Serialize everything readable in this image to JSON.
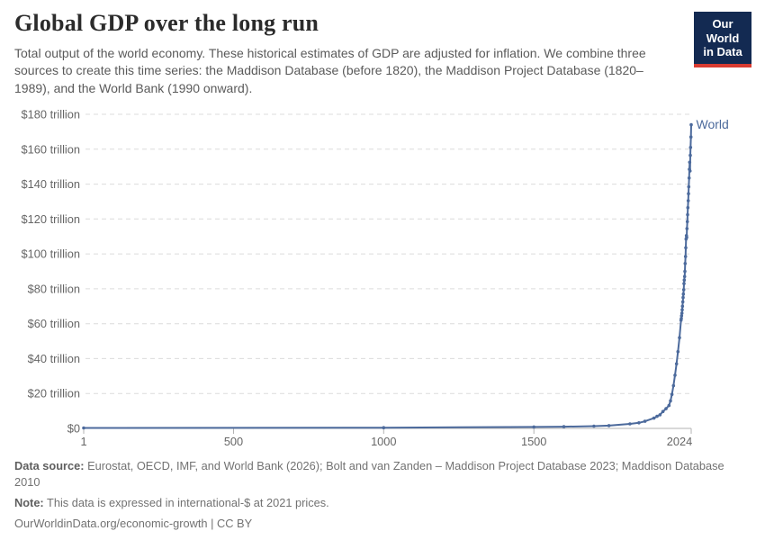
{
  "header": {
    "title": "Global GDP over the long run",
    "subtitle": "Total output of the world economy. These historical estimates of GDP are adjusted for inflation. We combine three sources to create this time series: the Maddison Database (before 1820), the Maddison Project Database (1820–1989), and the World Bank (1990 onward)."
  },
  "logo": {
    "line1": "Our World",
    "line2": "in Data",
    "bg_color": "#132A52",
    "accent_color": "#D93B31"
  },
  "footer": {
    "data_source_label": "Data source:",
    "data_source_text": " Eurostat, OECD, IMF, and World Bank (2026); Bolt and van Zanden – Maddison Project Database 2023; Maddison Database 2010",
    "note_label": "Note:",
    "note_text": " This data is expressed in international-$ at 2021 prices.",
    "citation": "OurWorldinData.org/economic-growth | CC BY"
  },
  "chart_data": {
    "type": "line",
    "title": "Global GDP over the long run",
    "xlabel": "",
    "ylabel": "",
    "unit": "trillion international-$ at 2021 prices",
    "xlim": [
      1,
      2024
    ],
    "ylim": [
      0,
      180
    ],
    "grid": "horizontal-dashed",
    "legend": "label-at-line-end",
    "x_ticks": [
      {
        "v": 1,
        "label": "1"
      },
      {
        "v": 500,
        "label": "500"
      },
      {
        "v": 1000,
        "label": "1000"
      },
      {
        "v": 1500,
        "label": "1500"
      },
      {
        "v": 2024,
        "label": "2024"
      }
    ],
    "y_ticks": [
      {
        "v": 0,
        "label": "$0"
      },
      {
        "v": 20,
        "label": "$20 trillion"
      },
      {
        "v": 40,
        "label": "$40 trillion"
      },
      {
        "v": 60,
        "label": "$60 trillion"
      },
      {
        "v": 80,
        "label": "$80 trillion"
      },
      {
        "v": 100,
        "label": "$100 trillion"
      },
      {
        "v": 120,
        "label": "$120 trillion"
      },
      {
        "v": 140,
        "label": "$140 trillion"
      },
      {
        "v": 160,
        "label": "$160 trillion"
      },
      {
        "v": 180,
        "label": "$180 trillion"
      }
    ],
    "series": [
      {
        "name": "World",
        "color": "#4C6A9C",
        "points": [
          [
            1,
            0.24
          ],
          [
            1000,
            0.41
          ],
          [
            1500,
            0.83
          ],
          [
            1600,
            1.0
          ],
          [
            1700,
            1.3
          ],
          [
            1750,
            1.6
          ],
          [
            1820,
            2.6
          ],
          [
            1850,
            3.2
          ],
          [
            1870,
            4.1
          ],
          [
            1900,
            5.9
          ],
          [
            1910,
            6.9
          ],
          [
            1920,
            7.8
          ],
          [
            1930,
            9.7
          ],
          [
            1940,
            11.3
          ],
          [
            1950,
            13.1
          ],
          [
            1955,
            15.8
          ],
          [
            1960,
            19.5
          ],
          [
            1965,
            24.5
          ],
          [
            1970,
            30.5
          ],
          [
            1975,
            37
          ],
          [
            1980,
            44
          ],
          [
            1985,
            52
          ],
          [
            1990,
            62
          ],
          [
            1991,
            63
          ],
          [
            1992,
            64.5
          ],
          [
            1993,
            66
          ],
          [
            1994,
            68
          ],
          [
            1995,
            70
          ],
          [
            1996,
            72.5
          ],
          [
            1997,
            75
          ],
          [
            1998,
            77
          ],
          [
            1999,
            79.5
          ],
          [
            2000,
            83
          ],
          [
            2001,
            85
          ],
          [
            2002,
            87
          ],
          [
            2003,
            90
          ],
          [
            2004,
            94.5
          ],
          [
            2005,
            98.5
          ],
          [
            2006,
            103.5
          ],
          [
            2007,
            108.5
          ],
          [
            2008,
            110.5
          ],
          [
            2009,
            109.5
          ],
          [
            2010,
            114.5
          ],
          [
            2011,
            118.5
          ],
          [
            2012,
            122.5
          ],
          [
            2013,
            126.5
          ],
          [
            2014,
            130.5
          ],
          [
            2015,
            134.5
          ],
          [
            2016,
            138.5
          ],
          [
            2017,
            143.5
          ],
          [
            2018,
            148.5
          ],
          [
            2019,
            152.5
          ],
          [
            2020,
            147.5
          ],
          [
            2021,
            156.5
          ],
          [
            2022,
            161
          ],
          [
            2023,
            167
          ],
          [
            2024,
            174
          ]
        ]
      }
    ]
  }
}
